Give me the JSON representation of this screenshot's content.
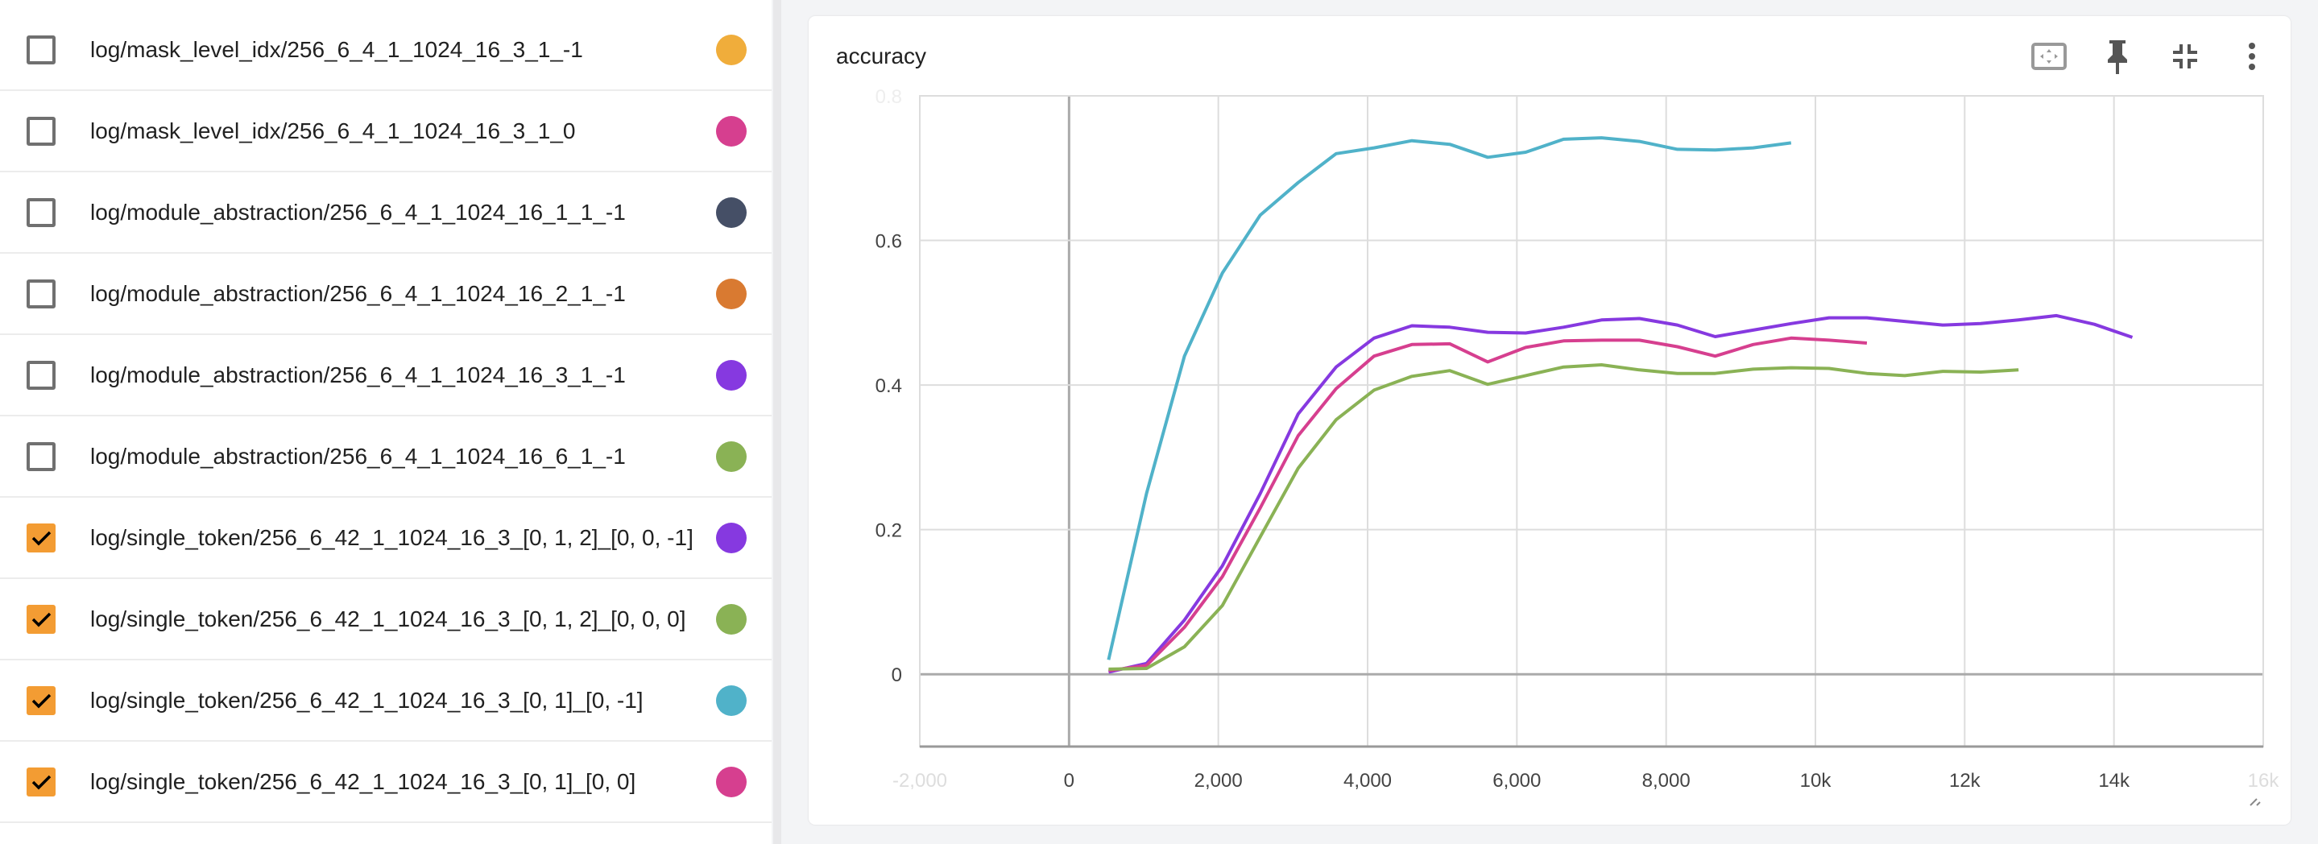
{
  "runs": [
    {
      "label": "log/mask_level_idx/256_6_4_1_1024_16_3_1_-1",
      "checked": false,
      "color": "#f0ad3b"
    },
    {
      "label": "log/mask_level_idx/256_6_4_1_1024_16_3_1_0",
      "checked": false,
      "color": "#d63f8f"
    },
    {
      "label": "log/module_abstraction/256_6_4_1_1024_16_1_1_-1",
      "checked": false,
      "color": "#454f66"
    },
    {
      "label": "log/module_abstraction/256_6_4_1_1024_16_2_1_-1",
      "checked": false,
      "color": "#d97a31"
    },
    {
      "label": "log/module_abstraction/256_6_4_1_1024_16_3_1_-1",
      "checked": false,
      "color": "#8639e0"
    },
    {
      "label": "log/module_abstraction/256_6_4_1_1024_16_6_1_-1",
      "checked": false,
      "color": "#8ab255"
    },
    {
      "label": "log/single_token/256_6_42_1_1024_16_3_[0, 1, 2]_[0, 0, -1]",
      "checked": true,
      "color": "#8639e0"
    },
    {
      "label": "log/single_token/256_6_42_1_1024_16_3_[0, 1, 2]_[0, 0, 0]",
      "checked": true,
      "color": "#8ab255"
    },
    {
      "label": "log/single_token/256_6_42_1_1024_16_3_[0, 1]_[0, -1]",
      "checked": true,
      "color": "#50b2c9"
    },
    {
      "label": "log/single_token/256_6_42_1_1024_16_3_[0, 1]_[0, 0]",
      "checked": true,
      "color": "#d63f8f"
    }
  ],
  "card": {
    "title": "accuracy",
    "icons": [
      "fit-domain-icon",
      "pin-icon",
      "collapse-icon",
      "more-vert-icon"
    ]
  },
  "chart_data": {
    "type": "line",
    "title": "accuracy",
    "xlim": [
      -2000,
      16000
    ],
    "ylim": [
      -0.1,
      0.8
    ],
    "xticks": [
      -2000,
      0,
      2000,
      4000,
      6000,
      8000,
      10000,
      12000,
      14000,
      16000
    ],
    "xtick_labels": [
      "-2,000",
      "0",
      "2,000",
      "4,000",
      "6,000",
      "8,000",
      "10k",
      "12k",
      "14k",
      "16k"
    ],
    "yticks": [
      0,
      0.2,
      0.4,
      0.6,
      0.8
    ],
    "ytick_labels": [
      "0",
      "0.2",
      "0.4",
      "0.6",
      "0.8"
    ],
    "grid": true,
    "series": [
      {
        "name": "log/single_token/256_6_42_1_1024_16_3_[0, 1]_[0, -1]",
        "color": "#50b2c9",
        "x": [
          530,
          1038,
          1546,
          2054,
          2562,
          3070,
          3578,
          4086,
          4594,
          5102,
          5610,
          6118,
          6626,
          7134,
          7642,
          8150,
          8658,
          9166,
          9674
        ],
        "y": [
          0.02,
          0.25,
          0.44,
          0.555,
          0.635,
          0.68,
          0.72,
          0.728,
          0.738,
          0.733,
          0.715,
          0.722,
          0.74,
          0.742,
          0.737,
          0.726,
          0.725,
          0.728,
          0.735
        ]
      },
      {
        "name": "log/single_token/256_6_42_1_1024_16_3_[0, 1, 2]_[0, 0, -1]",
        "color": "#8639e0",
        "x": [
          530,
          1038,
          1546,
          2054,
          2562,
          3070,
          3578,
          4086,
          4594,
          5102,
          5610,
          6118,
          6626,
          7134,
          7642,
          8150,
          8658,
          9166,
          9674,
          10182,
          10690,
          11198,
          11706,
          12214,
          12722,
          13230,
          13738,
          14246
        ],
        "y": [
          0.003,
          0.015,
          0.075,
          0.15,
          0.25,
          0.36,
          0.425,
          0.465,
          0.482,
          0.48,
          0.473,
          0.472,
          0.48,
          0.49,
          0.492,
          0.483,
          0.467,
          0.476,
          0.485,
          0.493,
          0.493,
          0.488,
          0.483,
          0.485,
          0.49,
          0.496,
          0.484,
          0.466
        ]
      },
      {
        "name": "log/single_token/256_6_42_1_1024_16_3_[0, 1]_[0, 0]",
        "color": "#d63f8f",
        "x": [
          530,
          1038,
          1546,
          2054,
          2562,
          3070,
          3578,
          4086,
          4594,
          5102,
          5610,
          6118,
          6626,
          7134,
          7642,
          8150,
          8658,
          9166,
          9674,
          10182,
          10690
        ],
        "y": [
          0.005,
          0.012,
          0.065,
          0.135,
          0.23,
          0.33,
          0.395,
          0.44,
          0.456,
          0.457,
          0.432,
          0.452,
          0.461,
          0.462,
          0.462,
          0.453,
          0.44,
          0.456,
          0.465,
          0.462,
          0.458
        ]
      },
      {
        "name": "log/single_token/256_6_42_1_1024_16_3_[0, 1, 2]_[0, 0, 0]",
        "color": "#8ab255",
        "x": [
          530,
          1038,
          1546,
          2054,
          2562,
          3070,
          3578,
          4086,
          4594,
          5102,
          5610,
          6118,
          6626,
          7134,
          7642,
          8150,
          8658,
          9166,
          9674,
          10182,
          10690,
          11198,
          11706,
          12214,
          12722
        ],
        "y": [
          0.007,
          0.008,
          0.038,
          0.095,
          0.19,
          0.285,
          0.352,
          0.393,
          0.412,
          0.42,
          0.401,
          0.413,
          0.425,
          0.428,
          0.421,
          0.416,
          0.416,
          0.422,
          0.424,
          0.423,
          0.416,
          0.413,
          0.419,
          0.418,
          0.421
        ]
      }
    ]
  }
}
